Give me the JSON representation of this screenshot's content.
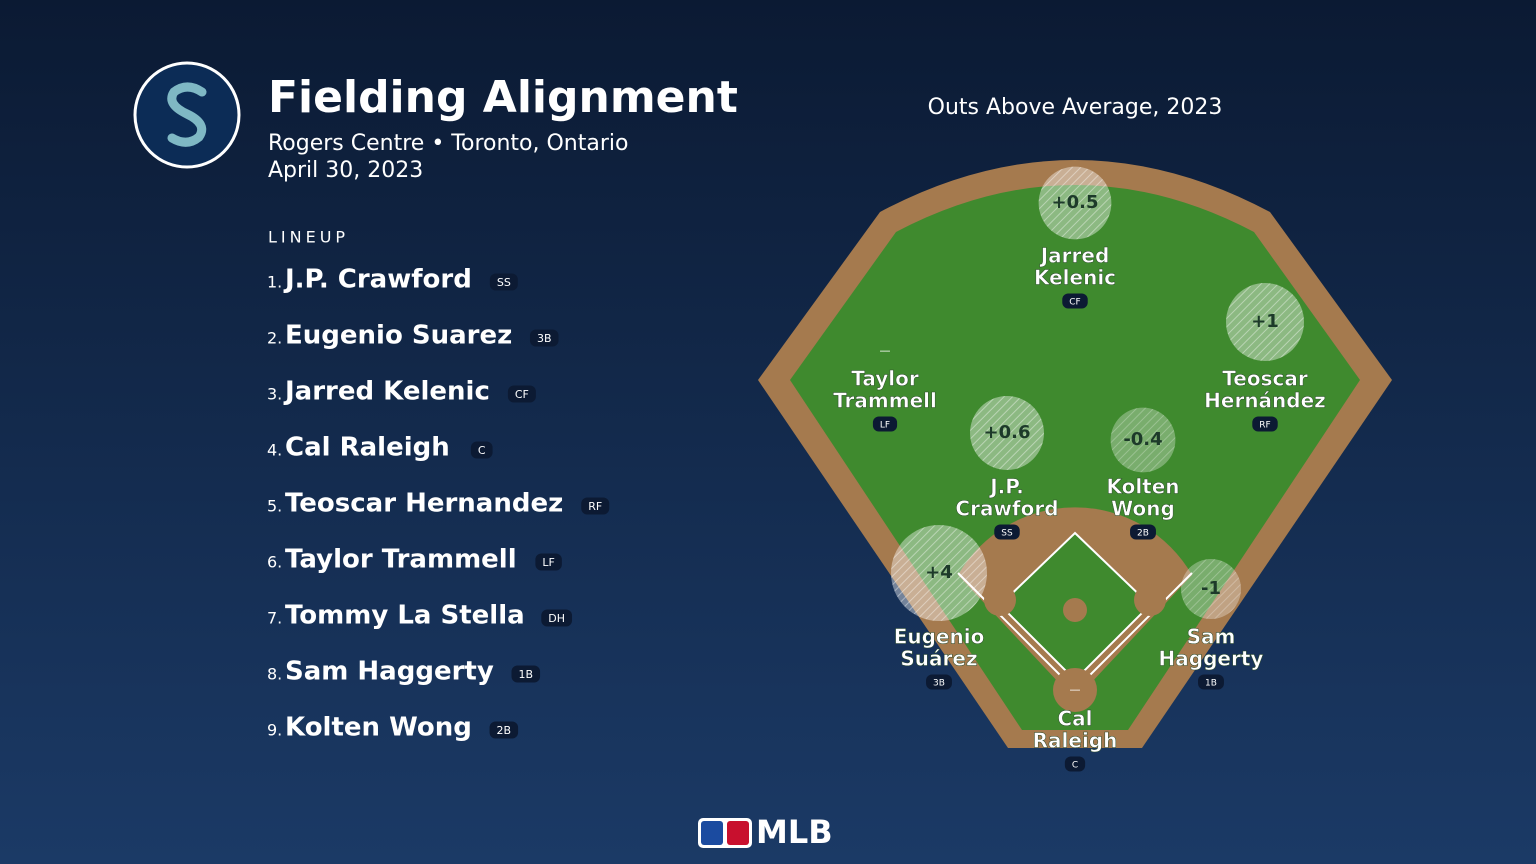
{
  "header": {
    "title": "Fielding Alignment",
    "venue": "Rogers Centre • Toronto, Ontario",
    "date": "April 30, 2023"
  },
  "lineup": {
    "label": "LINEUP",
    "batters": [
      {
        "order": "1.",
        "name": "J.P. Crawford",
        "position": "SS"
      },
      {
        "order": "2.",
        "name": "Eugenio Suarez",
        "position": "3B"
      },
      {
        "order": "3.",
        "name": "Jarred Kelenic",
        "position": "CF"
      },
      {
        "order": "4.",
        "name": "Cal Raleigh",
        "position": "C"
      },
      {
        "order": "5.",
        "name": "Teoscar Hernandez",
        "position": "RF"
      },
      {
        "order": "6.",
        "name": "Taylor Trammell",
        "position": "LF"
      },
      {
        "order": "7.",
        "name": "Tommy La Stella",
        "position": "DH"
      },
      {
        "order": "8.",
        "name": "Sam Haggerty",
        "position": "1B"
      },
      {
        "order": "9.",
        "name": "Kolten Wong",
        "position": "2B"
      }
    ]
  },
  "field": {
    "title": "Outs Above Average, 2023",
    "fielders": [
      {
        "name": [
          "Jarred",
          "Kelenic"
        ],
        "position": "CF",
        "oaa": "+0.5"
      },
      {
        "name": [
          "Teoscar",
          "Hernández"
        ],
        "position": "RF",
        "oaa": "+1"
      },
      {
        "name": [
          "Taylor",
          "Trammell"
        ],
        "position": "LF",
        "oaa": "—"
      },
      {
        "name": [
          "J.P.",
          "Crawford"
        ],
        "position": "SS",
        "oaa": "+0.6"
      },
      {
        "name": [
          "Kolten",
          "Wong"
        ],
        "position": "2B",
        "oaa": "-0.4"
      },
      {
        "name": [
          "Eugenio",
          "Suárez"
        ],
        "position": "3B",
        "oaa": "+4"
      },
      {
        "name": [
          "Sam",
          "Haggerty"
        ],
        "position": "1B",
        "oaa": "-1"
      },
      {
        "name": [
          "Cal",
          "Raleigh"
        ],
        "position": "C",
        "oaa": "—"
      }
    ]
  },
  "footer": {
    "brand": "MLB"
  }
}
